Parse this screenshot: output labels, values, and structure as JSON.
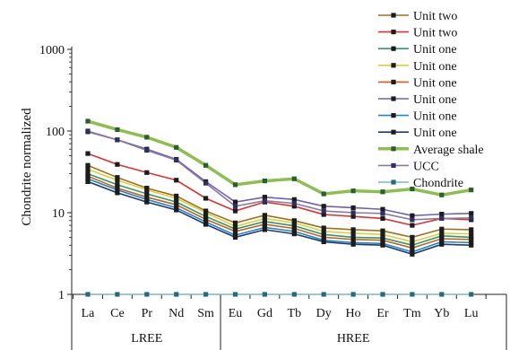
{
  "chart_data": {
    "type": "line",
    "title": "",
    "ylabel": "Chondrite normalized",
    "xlabel": "",
    "y_scale": "log",
    "ylim": [
      1,
      1000
    ],
    "y_ticks": [
      1,
      10,
      100,
      1000
    ],
    "y_tick_labels": [
      "1",
      "10",
      "100",
      "1000"
    ],
    "grid": false,
    "legend_position": "top-right",
    "categories": [
      "La",
      "Ce",
      "Pr",
      "Nd",
      "Sm",
      "Eu",
      "Gd",
      "Tb",
      "Dy",
      "Ho",
      "Er",
      "Tm",
      "Yb",
      "Lu"
    ],
    "groups": [
      {
        "label": "LREE",
        "from": "La",
        "to": "Sm"
      },
      {
        "label": "HREE",
        "from": "Eu",
        "to": "Lu"
      }
    ],
    "series": [
      {
        "name": "Unit two",
        "color": "#a0701c",
        "marker": "#1c1c1c",
        "values": [
          38,
          27,
          20,
          16,
          10.5,
          7.5,
          9.3,
          8,
          6.5,
          6.2,
          6,
          5,
          6.3,
          6.2
        ]
      },
      {
        "name": "Unit two",
        "color": "#e03030",
        "marker": "#1c1c1c",
        "values": [
          53,
          39,
          31,
          25,
          15,
          10.5,
          13.5,
          12,
          9.5,
          9,
          8.5,
          7,
          8.5,
          8.2
        ]
      },
      {
        "name": "Unit one",
        "color": "#2e9a6a",
        "marker": "#1c1c1c",
        "values": [
          30,
          22,
          17,
          13.5,
          9,
          6.3,
          7.8,
          6.9,
          5.4,
          5,
          4.9,
          4,
          5.2,
          5
        ]
      },
      {
        "name": "Unit one",
        "color": "#d8d040",
        "marker": "#1c1c1c",
        "values": [
          34,
          25,
          19,
          15,
          10,
          6.8,
          8.5,
          7.5,
          5.9,
          5.6,
          5.4,
          4.4,
          5.6,
          5.5
        ]
      },
      {
        "name": "Unit one",
        "color": "#c86020",
        "marker": "#1c1c1c",
        "values": [
          28,
          20,
          15.5,
          12.5,
          8.3,
          5.9,
          7.2,
          6.4,
          5,
          4.7,
          4.6,
          3.7,
          4.8,
          4.7
        ]
      },
      {
        "name": "Unit one",
        "color": "#7060b8",
        "marker": "#1c1c1c",
        "values": [
          98,
          78,
          60,
          45,
          24,
          13.5,
          15.5,
          14.5,
          12,
          11.5,
          11,
          9.2,
          9.6,
          9.8
        ]
      },
      {
        "name": "Unit one",
        "color": "#1e88c8",
        "marker": "#1c1c1c",
        "values": [
          26,
          19,
          14.5,
          11.5,
          7.7,
          5.3,
          6.6,
          5.9,
          4.6,
          4.3,
          4.2,
          3.3,
          4.4,
          4.3
        ]
      },
      {
        "name": "Unit one",
        "color": "#1e3a70",
        "marker": "#1c1c1c",
        "values": [
          24,
          17.5,
          13.5,
          10.8,
          7.2,
          5,
          6.2,
          5.5,
          4.4,
          4.1,
          4,
          3.1,
          4.1,
          4
        ]
      },
      {
        "name": "Average shale",
        "color": "#8cbf50",
        "marker": "#2d5d2a",
        "values": [
          132,
          104,
          84,
          63,
          38,
          22,
          24.5,
          26,
          17,
          18.5,
          18,
          19.5,
          16.5,
          19
        ]
      },
      {
        "name": "UCC",
        "color": "#8a7aa0",
        "marker": "#303060",
        "values": [
          100,
          78,
          58,
          44,
          23,
          12,
          14,
          13,
          10.5,
          10,
          9.8,
          8.2,
          8.5,
          8.6
        ]
      },
      {
        "name": "Chondrite",
        "color": "#7ab6c8",
        "marker": "#2a6880",
        "values": [
          1,
          1,
          1,
          1,
          1,
          1,
          1,
          1,
          1,
          1,
          1,
          1,
          1,
          1
        ]
      }
    ]
  }
}
